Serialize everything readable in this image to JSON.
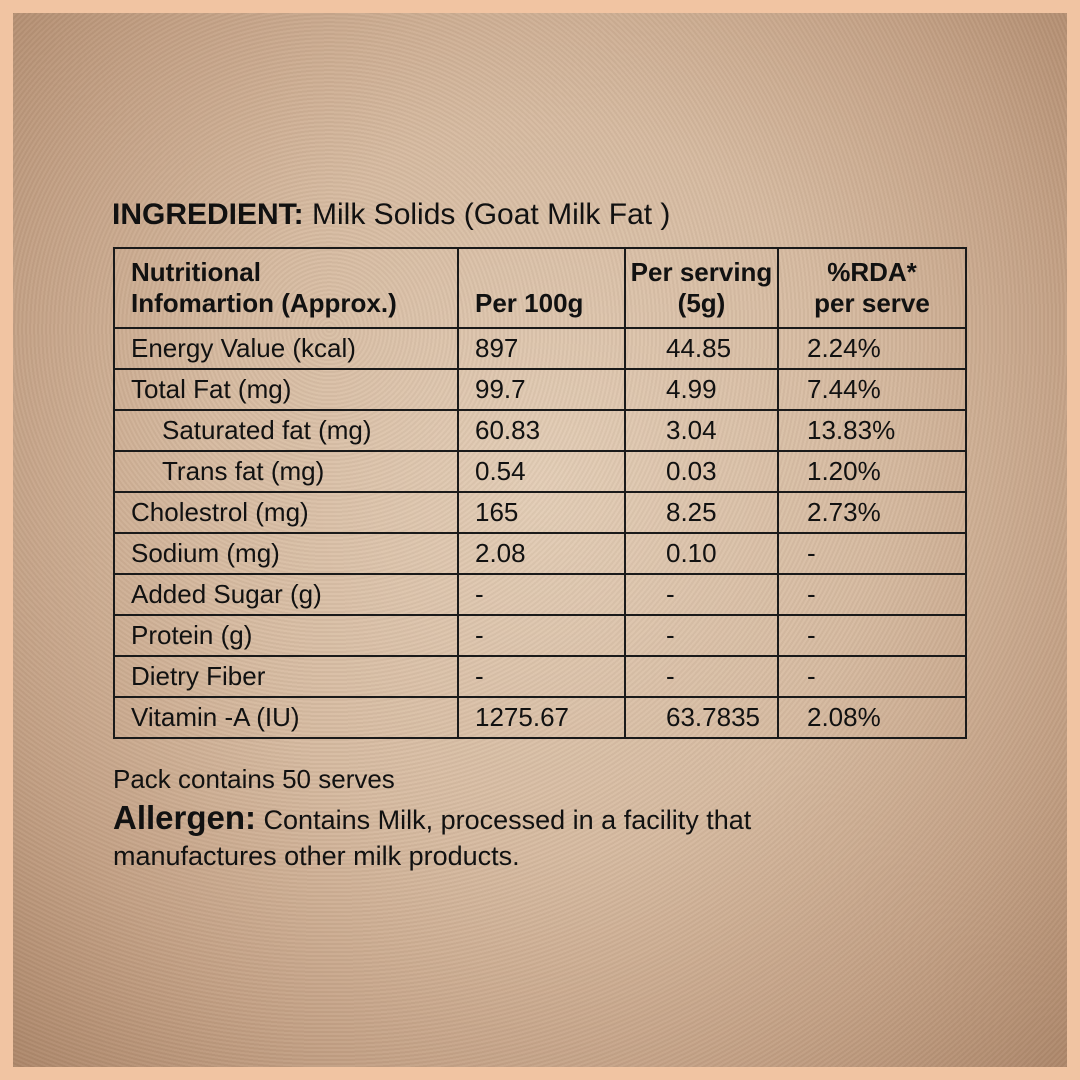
{
  "ingredient": {
    "label": "INGREDIENT:",
    "value": " Milk Solids (Goat Milk Fat )"
  },
  "table": {
    "headers": [
      {
        "line1": "Nutritional",
        "line2": "Infomartion (Approx.)"
      },
      {
        "line1": "Per 100g",
        "line2": ""
      },
      {
        "line1": "Per serving",
        "line2": "(5g)"
      },
      {
        "line1": "%RDA*",
        "line2": "per serve"
      }
    ],
    "rows": [
      {
        "name": "Energy Value (kcal)",
        "per100g": "897",
        "perServing": "44.85",
        "rda": "2.24%",
        "indent": false
      },
      {
        "name": "Total Fat (mg)",
        "per100g": "99.7",
        "perServing": "4.99",
        "rda": "7.44%",
        "indent": false
      },
      {
        "name": "Saturated fat (mg)",
        "per100g": "60.83",
        "perServing": "3.04",
        "rda": "13.83%",
        "indent": true
      },
      {
        "name": "Trans fat (mg)",
        "per100g": "0.54",
        "perServing": "0.03",
        "rda": "1.20%",
        "indent": true
      },
      {
        "name": "Cholestrol (mg)",
        "per100g": "165",
        "perServing": "8.25",
        "rda": "2.73%",
        "indent": false
      },
      {
        "name": "Sodium (mg)",
        "per100g": "2.08",
        "perServing": "0.10",
        "rda": "-",
        "indent": false
      },
      {
        "name": "Added Sugar (g)",
        "per100g": "-",
        "perServing": "-",
        "rda": "-",
        "indent": false
      },
      {
        "name": "Protein (g)",
        "per100g": "-",
        "perServing": "-",
        "rda": "-",
        "indent": false
      },
      {
        "name": "Dietry Fiber",
        "per100g": "-",
        "perServing": "-",
        "rda": "-",
        "indent": false
      },
      {
        "name": "Vitamin -A (IU)",
        "per100g": "1275.67",
        "perServing": "63.7835",
        "rda": "2.08%",
        "indent": false
      }
    ]
  },
  "footnote": "Pack contains 50 serves",
  "allergen": {
    "label": "Allergen:",
    "text": " Contains Milk, processed in a facility that manufactures other milk products."
  },
  "colors": {
    "border": "#f1c4a2",
    "paper": "#d6baa0",
    "text": "#111111"
  }
}
